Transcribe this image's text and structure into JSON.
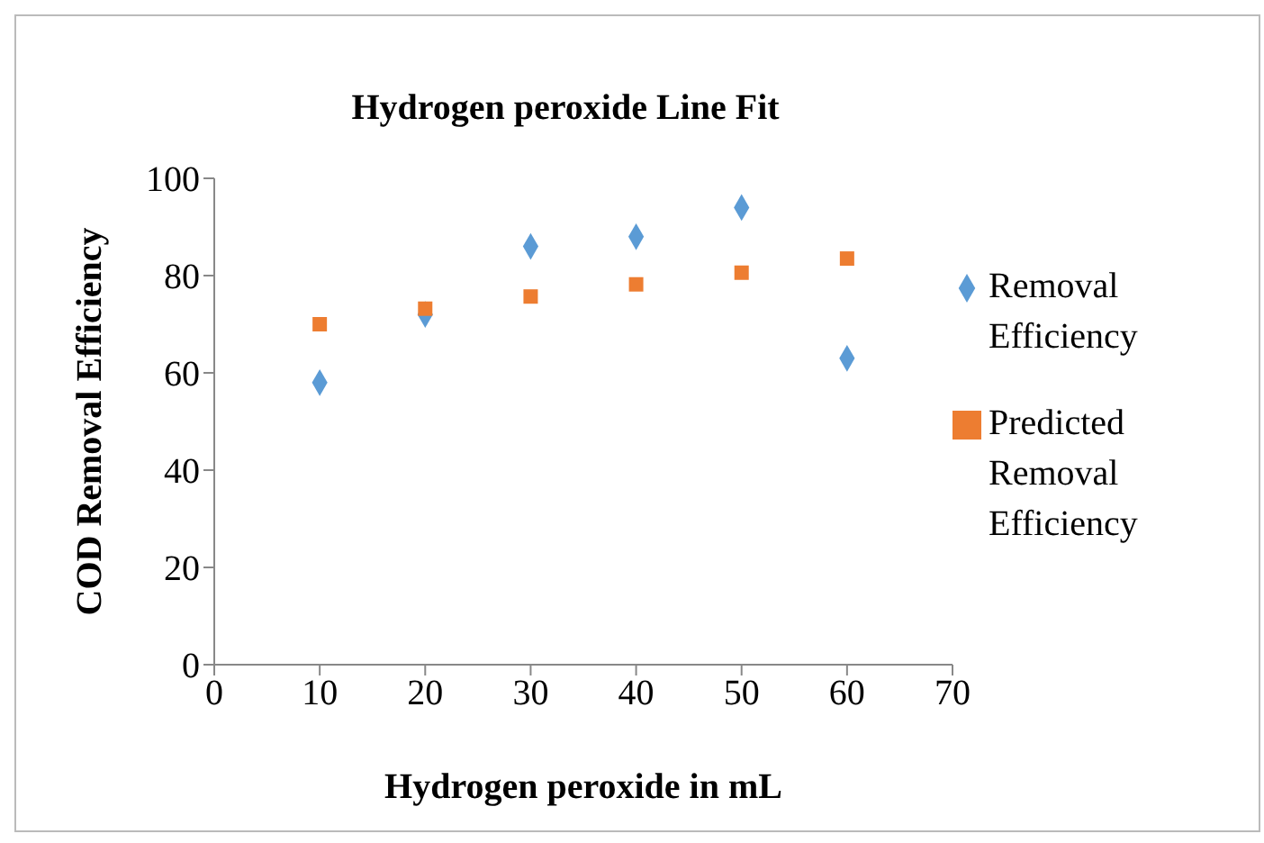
{
  "chart_data": {
    "type": "scatter",
    "title": "Hydrogen peroxide Line Fit",
    "xlabel": "Hydrogen peroxide in mL",
    "ylabel": "COD Removal Efficiency",
    "x": [
      10,
      20,
      30,
      40,
      50,
      60
    ],
    "series": [
      {
        "name": "Removal Efficiency",
        "color": "#5b9bd5",
        "marker": "diamond",
        "values": [
          58,
          72,
          86,
          88,
          94,
          63
        ]
      },
      {
        "name": "Predicted Removal Efficiency",
        "color": "#ed7d31",
        "marker": "square",
        "values": [
          70,
          73.2,
          75.7,
          78.2,
          80.6,
          83.5
        ]
      }
    ],
    "xlim": [
      0,
      70
    ],
    "xticks": [
      0,
      10,
      20,
      30,
      40,
      50,
      60,
      70
    ],
    "ylim": [
      0,
      100
    ],
    "yticks": [
      0,
      20,
      40,
      60,
      80,
      100
    ],
    "legend": "right"
  }
}
